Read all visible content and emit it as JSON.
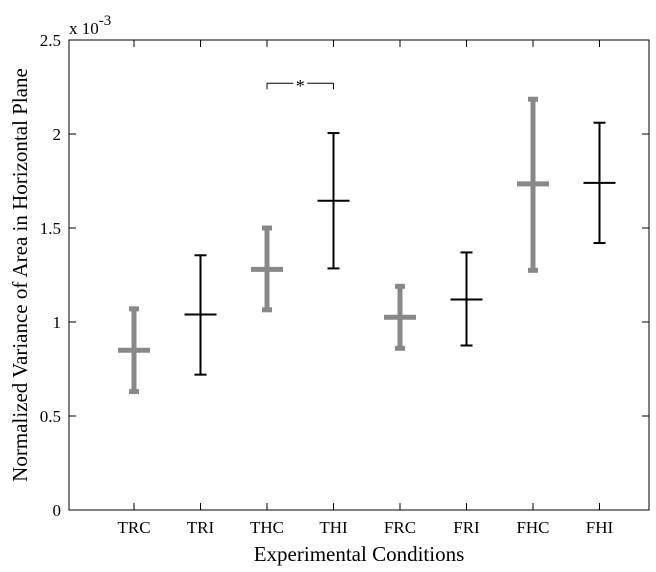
{
  "chart_data": {
    "type": "errorbar",
    "title": "",
    "xlabel": "Experimental Conditions",
    "ylabel": "Normalized Variance of Area in Horizontal Plane",
    "y_multiplier_label": "x 10",
    "y_multiplier_exponent": "-3",
    "ylim": [
      0,
      2.5
    ],
    "yticks": [
      0,
      0.5,
      1,
      1.5,
      2,
      2.5
    ],
    "ytick_labels": [
      "0",
      "0.5",
      "1",
      "1.5",
      "2",
      "2.5"
    ],
    "grid": false,
    "categories": [
      "TRC",
      "TRI",
      "THC",
      "THI",
      "FRC",
      "FRI",
      "FHC",
      "FHI"
    ],
    "means": [
      0.85,
      1.04,
      1.28,
      1.645,
      1.025,
      1.12,
      1.735,
      1.74
    ],
    "lower": [
      0.63,
      0.72,
      1.065,
      1.285,
      0.86,
      0.875,
      1.275,
      1.42
    ],
    "upper": [
      1.07,
      1.355,
      1.5,
      2.005,
      1.19,
      1.37,
      2.185,
      2.06
    ],
    "styles": [
      "gray",
      "black",
      "gray",
      "black",
      "gray",
      "black",
      "gray",
      "black"
    ],
    "colors": {
      "gray": "#888888",
      "black": "#000000"
    },
    "significance": {
      "from": "THC",
      "to": "THI",
      "y": 2.27,
      "label": "*"
    }
  }
}
